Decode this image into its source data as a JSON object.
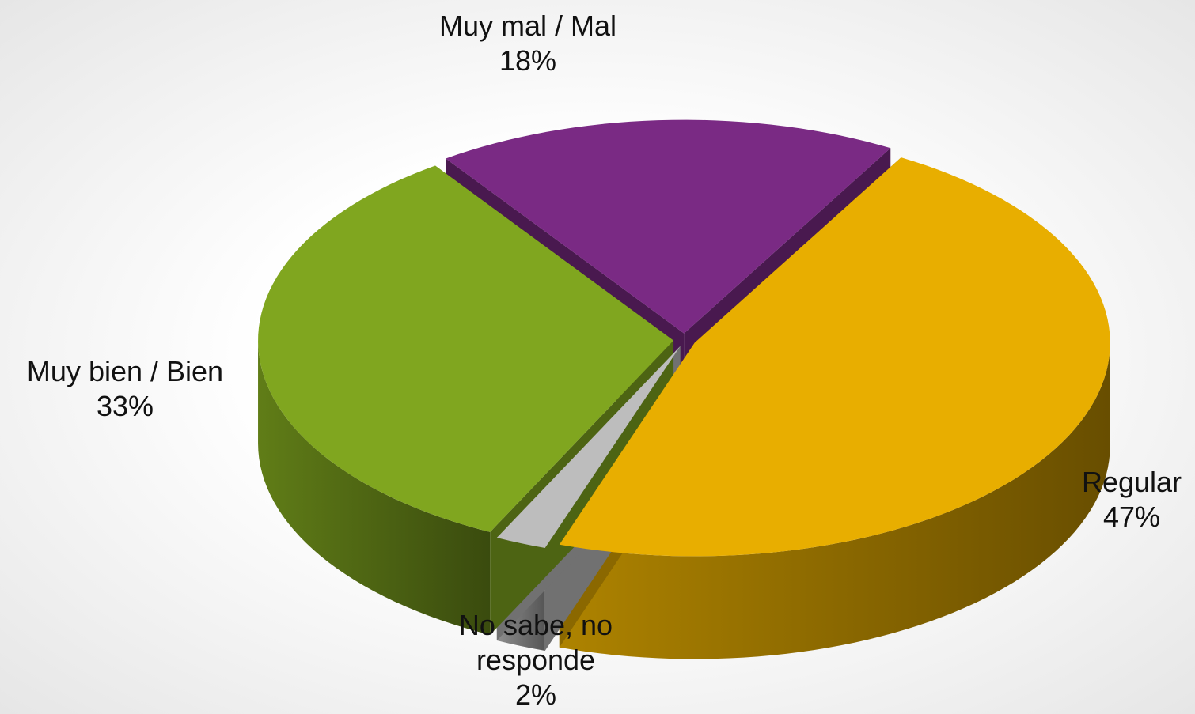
{
  "chart_data": {
    "type": "pie",
    "categories": [
      "Muy mal / Mal",
      "Regular",
      "No sabe, no responde",
      "Muy bien / Bien"
    ],
    "values": [
      18,
      47,
      2,
      33
    ],
    "value_labels": [
      "18%",
      "47%",
      "2%",
      "33%"
    ],
    "colors": [
      "#7a2a84",
      "#e8ae00",
      "#bdbdbd",
      "#80a61f"
    ]
  }
}
